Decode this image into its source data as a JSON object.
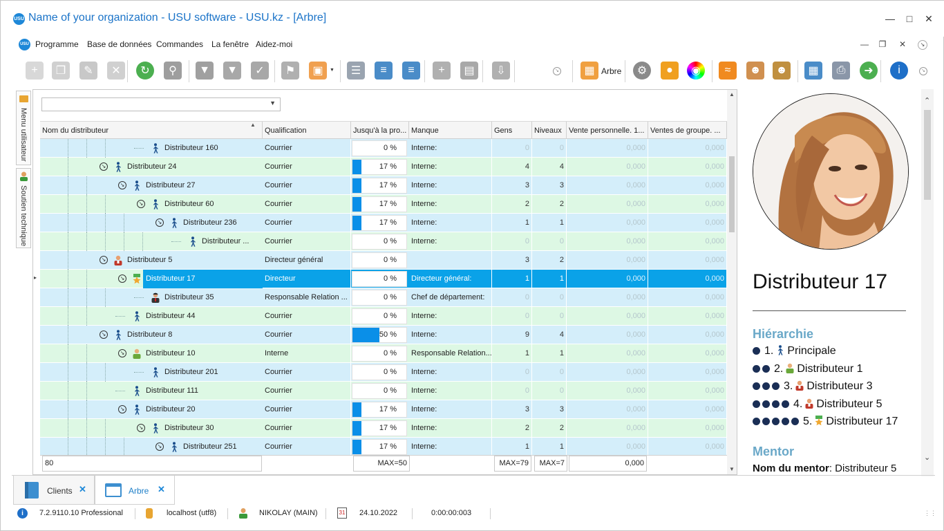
{
  "window": {
    "title": "Name of your organization - USU software - USU.kz - [Arbre]",
    "app_icon": "USU"
  },
  "menu": [
    "Programme",
    "Base de données",
    "Commandes",
    "La fenêtre",
    "Aidez-moi"
  ],
  "toolbar": {
    "tree_label": "Arbre",
    "icons": [
      "add-icon",
      "copy-icon",
      "edit-icon",
      "delete-icon",
      "refresh-icon",
      "search-icon",
      "filter-icon",
      "filter-settings-icon",
      "filter-check-icon",
      "flag-icon",
      "image-icon",
      "columns-icon",
      "tree-expand-icon",
      "tree-collapse-icon",
      "add-row-icon",
      "notes-icon",
      "download-icon",
      "tree-icon",
      "settings-icon",
      "map-pin-icon",
      "color-wheel-icon",
      "rss-icon",
      "user-key-icon",
      "users-icon",
      "table-icon",
      "print-icon",
      "arrow-right-icon",
      "info-icon"
    ]
  },
  "left_tabs": [
    "Menu utilisateur",
    "Soutien technique"
  ],
  "grid": {
    "filter_value": "",
    "columns": [
      "Nom du distributeur",
      "Qualification",
      "Jusqu'à la pro...",
      "Manque",
      "Gens",
      "Niveaux",
      "Vente personnelle. 1...",
      "Ventes de groupe. ..."
    ],
    "rows": [
      {
        "name": "Distributeur 160",
        "qual": "Courrier",
        "pct": "0 %",
        "fill": 0,
        "manque": "Interne:",
        "gens": "0",
        "niv": "0",
        "vp": "0,000",
        "vg": "0,000",
        "level": 3,
        "exp": false,
        "icon": "walker",
        "bg": "blue",
        "dim": true
      },
      {
        "name": "Distributeur 24",
        "qual": "Courrier",
        "pct": "17 %",
        "fill": 17,
        "manque": "Interne:",
        "gens": "4",
        "niv": "4",
        "vp": "0,000",
        "vg": "0,000",
        "level": 1,
        "exp": true,
        "icon": "walker",
        "bg": "green",
        "dim": false
      },
      {
        "name": "Distributeur 27",
        "qual": "Courrier",
        "pct": "17 %",
        "fill": 17,
        "manque": "Interne:",
        "gens": "3",
        "niv": "3",
        "vp": "0,000",
        "vg": "0,000",
        "level": 2,
        "exp": true,
        "icon": "walker",
        "bg": "blue",
        "dim": false
      },
      {
        "name": "Distributeur 60",
        "qual": "Courrier",
        "pct": "17 %",
        "fill": 17,
        "manque": "Interne:",
        "gens": "2",
        "niv": "2",
        "vp": "0,000",
        "vg": "0,000",
        "level": 3,
        "exp": true,
        "icon": "walker",
        "bg": "green",
        "dim": false
      },
      {
        "name": "Distributeur 236",
        "qual": "Courrier",
        "pct": "17 %",
        "fill": 17,
        "manque": "Interne:",
        "gens": "1",
        "niv": "1",
        "vp": "0,000",
        "vg": "0,000",
        "level": 4,
        "exp": true,
        "icon": "walker",
        "bg": "blue",
        "dim": false
      },
      {
        "name": "Distributeur ...",
        "qual": "Courrier",
        "pct": "0 %",
        "fill": 0,
        "manque": "Interne:",
        "gens": "0",
        "niv": "0",
        "vp": "0,000",
        "vg": "0,000",
        "level": 5,
        "exp": false,
        "icon": "walker",
        "bg": "green",
        "dim": true
      },
      {
        "name": "Distributeur 5",
        "qual": "Directeur général",
        "pct": "0 %",
        "fill": 0,
        "manque": "",
        "gens": "3",
        "niv": "2",
        "vp": "0,000",
        "vg": "0,000",
        "level": 1,
        "exp": true,
        "icon": "director",
        "bg": "blue",
        "dim": false
      },
      {
        "name": "Distributeur 17",
        "qual": "Directeur",
        "pct": "0 %",
        "fill": 0,
        "manque": "Directeur général:",
        "gens": "1",
        "niv": "1",
        "vp": "0,000",
        "vg": "0,000",
        "level": 2,
        "exp": true,
        "icon": "star",
        "bg": "sel",
        "dim": false
      },
      {
        "name": "Distributeur 35",
        "qual": "Responsable Relation ...",
        "pct": "0 %",
        "fill": 0,
        "manque": "Chef de département:",
        "gens": "0",
        "niv": "0",
        "vp": "0,000",
        "vg": "0,000",
        "level": 3,
        "exp": false,
        "icon": "manager",
        "bg": "blue",
        "dim": true
      },
      {
        "name": "Distributeur 44",
        "qual": "Courrier",
        "pct": "0 %",
        "fill": 0,
        "manque": "Interne:",
        "gens": "0",
        "niv": "0",
        "vp": "0,000",
        "vg": "0,000",
        "level": 2,
        "exp": false,
        "icon": "walker",
        "bg": "green",
        "dim": true
      },
      {
        "name": "Distributeur 8",
        "qual": "Courrier",
        "pct": "50 %",
        "fill": 50,
        "manque": "Interne:",
        "gens": "9",
        "niv": "4",
        "vp": "0,000",
        "vg": "0,000",
        "level": 1,
        "exp": true,
        "icon": "walker",
        "bg": "blue",
        "dim": false
      },
      {
        "name": "Distributeur 10",
        "qual": "Interne",
        "pct": "0 %",
        "fill": 0,
        "manque": "Responsable Relation...",
        "gens": "1",
        "niv": "1",
        "vp": "0,000",
        "vg": "0,000",
        "level": 2,
        "exp": true,
        "icon": "intern",
        "bg": "green",
        "dim": false
      },
      {
        "name": "Distributeur 201",
        "qual": "Courrier",
        "pct": "0 %",
        "fill": 0,
        "manque": "Interne:",
        "gens": "0",
        "niv": "0",
        "vp": "0,000",
        "vg": "0,000",
        "level": 3,
        "exp": false,
        "icon": "walker",
        "bg": "blue",
        "dim": true
      },
      {
        "name": "Distributeur 111",
        "qual": "Courrier",
        "pct": "0 %",
        "fill": 0,
        "manque": "Interne:",
        "gens": "0",
        "niv": "0",
        "vp": "0,000",
        "vg": "0,000",
        "level": 2,
        "exp": false,
        "icon": "walker",
        "bg": "green",
        "dim": true
      },
      {
        "name": "Distributeur 20",
        "qual": "Courrier",
        "pct": "17 %",
        "fill": 17,
        "manque": "Interne:",
        "gens": "3",
        "niv": "3",
        "vp": "0,000",
        "vg": "0,000",
        "level": 2,
        "exp": true,
        "icon": "walker",
        "bg": "blue",
        "dim": false
      },
      {
        "name": "Distributeur 30",
        "qual": "Courrier",
        "pct": "17 %",
        "fill": 17,
        "manque": "Interne:",
        "gens": "2",
        "niv": "2",
        "vp": "0,000",
        "vg": "0,000",
        "level": 3,
        "exp": true,
        "icon": "walker",
        "bg": "green",
        "dim": false
      },
      {
        "name": "Distributeur 251",
        "qual": "Courrier",
        "pct": "17 %",
        "fill": 17,
        "manque": "Interne:",
        "gens": "1",
        "niv": "1",
        "vp": "0,000",
        "vg": "0,000",
        "level": 4,
        "exp": true,
        "icon": "walker",
        "bg": "blue",
        "dim": false
      }
    ],
    "footer": {
      "count": "80",
      "pct_max": "MAX=50",
      "gens_max": "MAX=79",
      "niv_max": "MAX=7",
      "vp_sum": "0,000"
    }
  },
  "profile": {
    "name": "Distributeur 17",
    "hierarchy_title": "Hiérarchie",
    "hierarchy": [
      {
        "label": "1.",
        "name": "Principale",
        "dots": 1,
        "icon": "walker"
      },
      {
        "label": "2.",
        "name": "Distributeur 1",
        "dots": 2,
        "icon": "intern"
      },
      {
        "label": "3.",
        "name": "Distributeur 3",
        "dots": 3,
        "icon": "director"
      },
      {
        "label": "4.",
        "name": "Distributeur 5",
        "dots": 4,
        "icon": "director"
      },
      {
        "label": "5.",
        "name": "Distributeur 17",
        "dots": 5,
        "icon": "star"
      }
    ],
    "mentor_title": "Mentor",
    "mentor_label": "Nom du mentor",
    "mentor_value": ": Distributeur 5"
  },
  "tabs": [
    {
      "label": "Clients",
      "active": false
    },
    {
      "label": "Arbre",
      "active": true
    }
  ],
  "status": {
    "version": "7.2.9110.10 Professional",
    "db": "localhost (utf8)",
    "user": "NIKOLAY (MAIN)",
    "date": "24.10.2022",
    "timer": "0:00:00:003",
    "calendar_day": "31"
  },
  "colors": {
    "accent": "#1e88d8",
    "selected_row": "#0aa2e8",
    "row_blue": "#d4eefa",
    "row_green": "#ddf8e4",
    "progress": "#0a8fe8",
    "section": "#6aa8c8"
  }
}
